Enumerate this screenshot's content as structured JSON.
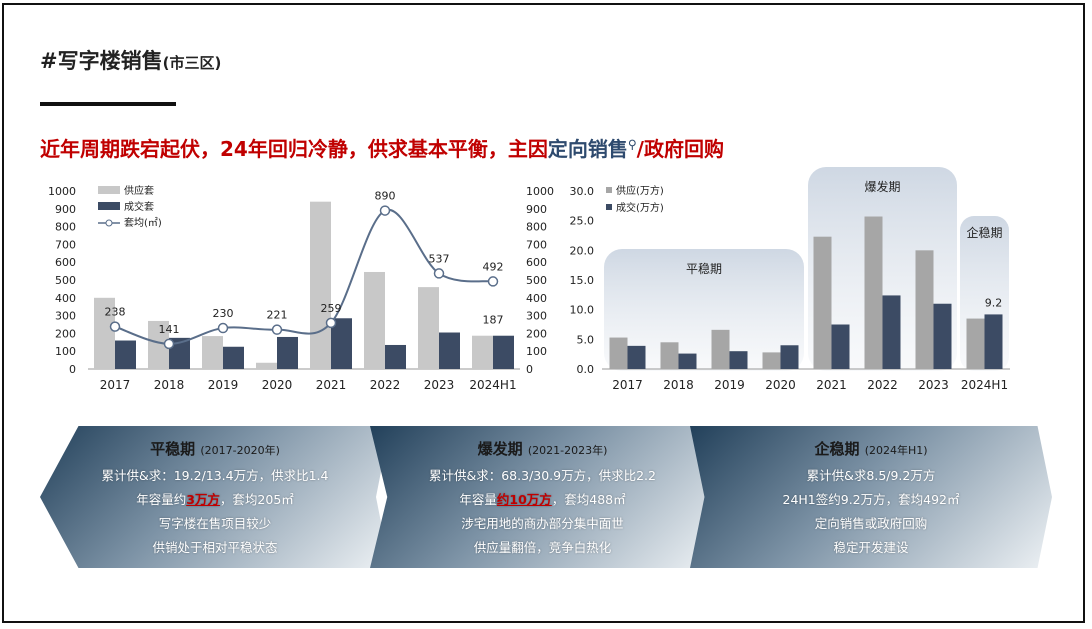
{
  "header": {
    "title": "#写字楼销售",
    "title_sub": "(市三区)",
    "headline_red": "近年周期跌宕起伏，24年回归冷静，供求基本平衡，主因",
    "headline_blue": "定向销售",
    "headline_icon": "search-icon",
    "headline_tail": "/政府回购"
  },
  "colors": {
    "supply_bar": "#c8c8c8",
    "deal_bar": "#3c4b64",
    "price_line": "#5a6e8a",
    "headline": "#c00000",
    "headline_accent": "#2e4a6e"
  },
  "chart_data": [
    {
      "type": "bar",
      "categories": [
        "2017",
        "2018",
        "2019",
        "2020",
        "2021",
        "2022",
        "2023",
        "2024H1"
      ],
      "series": [
        {
          "name": "供应套",
          "kind": "bar",
          "values": [
            400,
            270,
            185,
            35,
            940,
            545,
            460,
            187
          ]
        },
        {
          "name": "成交套",
          "kind": "bar",
          "values": [
            160,
            175,
            125,
            180,
            285,
            135,
            205,
            187
          ]
        },
        {
          "name": "套均(㎡)",
          "kind": "line",
          "axis": "right",
          "values": [
            238,
            141,
            230,
            221,
            259,
            890,
            537,
            492
          ]
        }
      ],
      "ylim": [
        0,
        1000
      ],
      "y2lim": [
        0,
        1000
      ],
      "yticks": [
        0,
        100,
        200,
        300,
        400,
        500,
        600,
        700,
        800,
        900,
        1000
      ],
      "data_labels": [
        "238",
        "141",
        "230",
        "221",
        "259",
        "890",
        "537",
        "492"
      ],
      "extra_label": "187",
      "legend": "top-left",
      "grid": false
    },
    {
      "type": "bar",
      "categories": [
        "2017",
        "2018",
        "2019",
        "2020",
        "2021",
        "2022",
        "2023",
        "2024H1"
      ],
      "series": [
        {
          "name": "供应(万方)",
          "values": [
            5.3,
            4.5,
            6.6,
            2.8,
            22.3,
            25.7,
            20.0,
            8.5
          ]
        },
        {
          "name": "成交(万方)",
          "values": [
            3.9,
            2.6,
            3.0,
            4.0,
            7.5,
            12.4,
            11.0,
            9.2
          ]
        }
      ],
      "ylim": [
        0,
        30
      ],
      "yticks": [
        "0.0",
        "5.0",
        "10.0",
        "15.0",
        "20.0",
        "25.0",
        "30.0"
      ],
      "data_labels": [
        "9.2"
      ],
      "legend": "top-left",
      "grid": false,
      "phases": [
        "平稳期",
        "爆发期",
        "企稳期"
      ]
    }
  ],
  "banners": [
    {
      "title": "平稳期",
      "years": "(2017-2020年)",
      "line1": "累计供&求：19.2/13.4万方，供求比1.4",
      "line2_pre": "年容量约",
      "line2_hl": "3万方",
      "line2_post": "，套均205㎡",
      "line3": "写字楼在售项目较少",
      "line4": "供销处于相对平稳状态"
    },
    {
      "title": "爆发期",
      "years": "(2021-2023年)",
      "line1": "累计供&求：68.3/30.9万方，供求比2.2",
      "line2_pre": "年容量",
      "line2_hl": "约10万方",
      "line2_post": "，套均488㎡",
      "line3": "涉宅用地的商办部分集中面世",
      "line4": "供应量翻倍，竞争白热化"
    },
    {
      "title": "企稳期",
      "years": "(2024年H1)",
      "line1": "累计供&求8.5/9.2万方",
      "line2_pre": "24H1签约9.2万方，套均492㎡",
      "line2_hl": "",
      "line2_post": "",
      "line3": "定向销售或政府回购",
      "line4": "稳定开发建设"
    }
  ]
}
